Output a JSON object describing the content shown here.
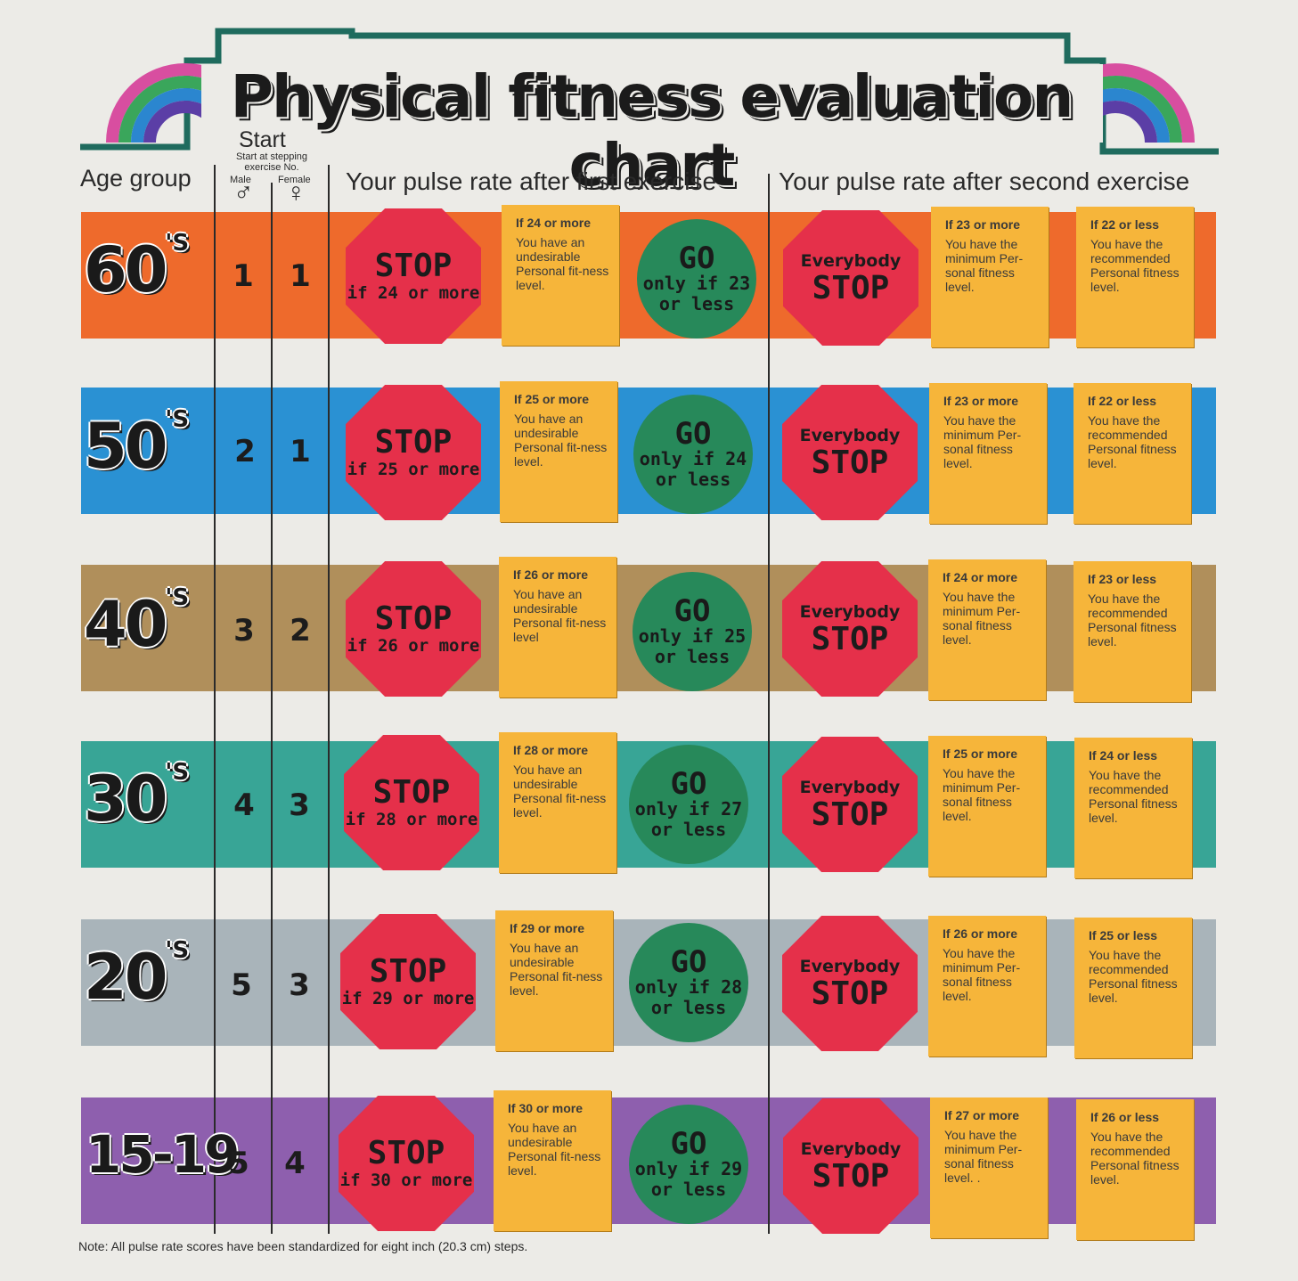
{
  "title": "Physical fitness evaluation chart",
  "headers": {
    "age_group": "Age group",
    "start": "Start",
    "start_sub": "Start at stepping exercise No.",
    "male": "Male",
    "female": "Female",
    "male_symbol": "♂",
    "female_symbol": "♀",
    "first_exercise": "Your pulse rate after first exercise",
    "second_exercise": "Your pulse rate after second exercise"
  },
  "colors": {
    "band_60s": "#ee6a2c",
    "band_50s": "#2a91d3",
    "band_40s": "#b08f5b",
    "band_30s": "#38a596",
    "band_20s": "#a9b4ba",
    "band_15_19": "#8e5fae",
    "stop_red": "#e5304a",
    "go_green": "#27895a",
    "note_box": "#f6b53a"
  },
  "rows": [
    {
      "age": "60",
      "age_suffix": "'S",
      "male": "1",
      "female": "1",
      "stop_word": "STOP",
      "stop_cond": "if 24 or more",
      "first_head": "If 24 or more",
      "first_text": "You have an undesirable Personal fit-ness level.",
      "go_word": "GO",
      "go_l2": "only if 23",
      "go_l3": "or less",
      "every_l1": "Everybody",
      "every_l2": "STOP",
      "min_head": "If 23 or more",
      "min_text": "You have the minimum Per-sonal fitness level.",
      "rec_head": "If 22 or less",
      "rec_text": "You have the recommended Personal fitness level."
    },
    {
      "age": "50",
      "age_suffix": "'S",
      "male": "2",
      "female": "1",
      "stop_word": "STOP",
      "stop_cond": "if 25 or more",
      "first_head": "If 25 or more",
      "first_text": "You have an undesirable Personal fit-ness level.",
      "go_word": "GO",
      "go_l2": "only if 24",
      "go_l3": "or less",
      "every_l1": "Everybody",
      "every_l2": "STOP",
      "min_head": "If 23 or more",
      "min_text": "You have the minimum Per-sonal fitness level.",
      "rec_head": "If 22 or less",
      "rec_text": "You have the recommended Personal fitness level."
    },
    {
      "age": "40",
      "age_suffix": "'S",
      "male": "3",
      "female": "2",
      "stop_word": "STOP",
      "stop_cond": "if 26 or more",
      "first_head": "If 26 or more",
      "first_text": "You have an undesirable Personal fit-ness level",
      "go_word": "GO",
      "go_l2": "only if 25",
      "go_l3": "or less",
      "every_l1": "Everybody",
      "every_l2": "STOP",
      "min_head": "If 24 or more",
      "min_text": "You have the minimum Per-sonal fitness level.",
      "rec_head": "If 23 or less",
      "rec_text": "You have the recommended Personal fitness level."
    },
    {
      "age": "30",
      "age_suffix": "'S",
      "male": "4",
      "female": "3",
      "stop_word": "STOP",
      "stop_cond": "if 28 or more",
      "first_head": "If 28 or more",
      "first_text": "You have an undesirable Personal fit-ness level.",
      "go_word": "GO",
      "go_l2": "only if 27",
      "go_l3": "or less",
      "every_l1": "Everybody",
      "every_l2": "STOP",
      "min_head": "If 25 or more",
      "min_text": "You have the minimum Per-sonal fitness level.",
      "rec_head": "If 24 or less",
      "rec_text": "You have the recommended Personal fitness level."
    },
    {
      "age": "20",
      "age_suffix": "'S",
      "male": "5",
      "female": "3",
      "stop_word": "STOP",
      "stop_cond": "if 29 or more",
      "first_head": "If 29 or more",
      "first_text": "You have an undesirable Personal fit-ness level.",
      "go_word": "GO",
      "go_l2": "only if 28",
      "go_l3": "or less",
      "every_l1": "Everybody",
      "every_l2": "STOP",
      "min_head": "If 26 or more",
      "min_text": "You have the minimum Per-sonal fitness level.",
      "rec_head": "If 25 or less",
      "rec_text": "You have the recommended Personal fitness level."
    },
    {
      "age": "15-19",
      "age_suffix": "",
      "male": "5",
      "female": "4",
      "stop_word": "STOP",
      "stop_cond": "if 30 or more",
      "first_head": "If 30 or more",
      "first_text": "You have an undesirable Personal fit-ness level.",
      "go_word": "GO",
      "go_l2": "only if 29",
      "go_l3": "or less",
      "every_l1": "Everybody",
      "every_l2": "STOP",
      "min_head": "If 27 or more",
      "min_text": "You have the minimum Per-sonal fitness level. .",
      "rec_head": "If 26 or less",
      "rec_text": "You have the recommended Personal fitness level."
    }
  ],
  "note": "Note: All pulse rate scores have been standardized for eight inch (20.3 cm) steps."
}
